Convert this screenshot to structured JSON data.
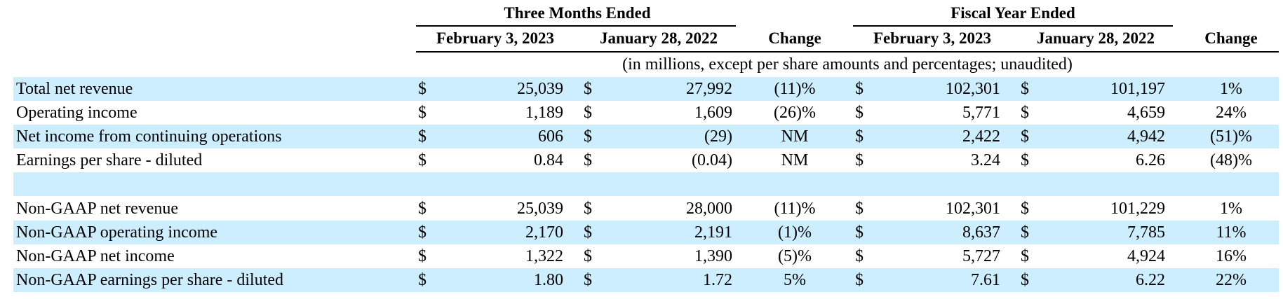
{
  "header": {
    "group_left": "Three Months Ended",
    "group_right": "Fiscal Year Ended",
    "columns": [
      "February 3, 2023",
      "January 28, 2022",
      "Change",
      "February 3, 2023",
      "January 28, 2022",
      "Change"
    ],
    "note": "(in millions, except per share amounts and percentages; unaudited)"
  },
  "rows": [
    {
      "label": "Total net revenue",
      "q_cur": "25,039",
      "q_prev": "27,992",
      "q_chg": "(11)%",
      "fy_cur": "102,301",
      "fy_prev": "101,197",
      "fy_chg": "1%",
      "d": "$"
    },
    {
      "label": "Operating income",
      "q_cur": "1,189",
      "q_prev": "1,609",
      "q_chg": "(26)%",
      "fy_cur": "5,771",
      "fy_prev": "4,659",
      "fy_chg": "24%",
      "d": "$"
    },
    {
      "label": "Net income from continuing operations",
      "q_cur": "606",
      "q_prev": "(29)",
      "q_chg": "NM",
      "fy_cur": "2,422",
      "fy_prev": "4,942",
      "fy_chg": "(51)%",
      "d": "$"
    },
    {
      "label": "Earnings per share - diluted",
      "q_cur": "0.84",
      "q_prev": "(0.04)",
      "q_chg": "NM",
      "fy_cur": "3.24",
      "fy_prev": "6.26",
      "fy_chg": "(48)%",
      "d": "$"
    },
    {
      "label": "Non-GAAP net revenue",
      "q_cur": "25,039",
      "q_prev": "28,000",
      "q_chg": "(11)%",
      "fy_cur": "102,301",
      "fy_prev": "101,229",
      "fy_chg": "1%",
      "d": "$"
    },
    {
      "label": "Non-GAAP operating income",
      "q_cur": "2,170",
      "q_prev": "2,191",
      "q_chg": "(1)%",
      "fy_cur": "8,637",
      "fy_prev": "7,785",
      "fy_chg": "11%",
      "d": "$"
    },
    {
      "label": "Non-GAAP net income",
      "q_cur": "1,322",
      "q_prev": "1,390",
      "q_chg": "(5)%",
      "fy_cur": "5,727",
      "fy_prev": "4,924",
      "fy_chg": "16%",
      "d": "$"
    },
    {
      "label": "Non-GAAP earnings per share - diluted",
      "q_cur": "1.80",
      "q_prev": "1.72",
      "q_chg": "5%",
      "fy_cur": "7.61",
      "fy_prev": "6.22",
      "fy_chg": "22%",
      "d": "$"
    }
  ],
  "colors": {
    "band": "#cceeff",
    "text": "#000000"
  }
}
